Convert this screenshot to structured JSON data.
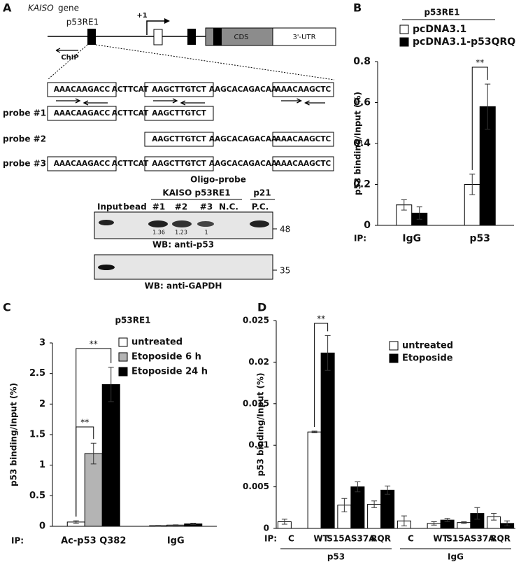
{
  "panel_a": {
    "label": "A",
    "gene_name": "KAISO",
    "gene_suffix": "gene",
    "element_label": "p53RE1",
    "tss_label": "+1",
    "cds_label": "CDS",
    "utr_label": "3'-UTR",
    "chip_label": "ChIP",
    "sequence": [
      "AAACAAGACC",
      "ACTTCAT",
      "AAGCTTGTCT",
      "AAGCACAGACAA",
      "AAACAAGCTC"
    ],
    "probes": [
      {
        "name": "probe #1",
        "segments": [
          "AAACAAGACC",
          "ACTTCAT",
          "AAGCTTGTCT"
        ]
      },
      {
        "name": "probe #2",
        "segments": [
          "AAGCTTGTCT",
          "AAGCACAGACAA",
          "AAACAAGCTC"
        ]
      },
      {
        "name": "probe #3",
        "segments": [
          "AAACAAGACC",
          "ACTTCAT",
          "AAGCTTGTCT",
          "AAGCACAGACAA",
          "AAACAAGCTC"
        ]
      }
    ],
    "blot": {
      "probe_title": "Oligo-probe",
      "group_kaiso": "KAISO p53RE1",
      "group_p21": "p21",
      "lanes": [
        "Input",
        "bead",
        "#1",
        "#2",
        "#3",
        "N.C.",
        "P.C."
      ],
      "quantities": [
        1.36,
        1.23,
        1
      ],
      "markers": [
        48,
        35
      ],
      "captions": [
        "WB: anti-p53",
        "WB: anti-GAPDH"
      ]
    }
  },
  "chart_data": [
    {
      "type": "bar",
      "panel_label": "B",
      "title": "p53RE1",
      "ylabel": "p53 binding/Input  (%)",
      "x_prefix": "IP:",
      "categories": [
        "IgG",
        "p53"
      ],
      "series": [
        {
          "name": "pcDNA3.1",
          "color": "#ffffff",
          "values": [
            0.1,
            0.2
          ],
          "errors": [
            0.025,
            0.05
          ]
        },
        {
          "name": "pcDNA3.1-p53QRQ",
          "color": "#000000",
          "values": [
            0.06,
            0.58
          ],
          "errors": [
            0.03,
            0.11
          ]
        }
      ],
      "ylim": [
        0,
        0.8
      ],
      "yticks": [
        0,
        0.2,
        0.4,
        0.6,
        0.8
      ],
      "annotations": [
        "**"
      ]
    },
    {
      "type": "bar",
      "panel_label": "C",
      "title": "p53RE1",
      "ylabel": "p53 binding/Input (%)",
      "x_prefix": "IP:",
      "categories": [
        "Ac-p53 Q382",
        "IgG"
      ],
      "series": [
        {
          "name": "untreated",
          "color": "#ffffff",
          "values": [
            0.07,
            0.01
          ],
          "errors": [
            0.02,
            0.005
          ]
        },
        {
          "name": "Etoposide 6 h",
          "color": "#b4b4b4",
          "values": [
            1.19,
            0.02
          ],
          "errors": [
            0.17,
            0.005
          ]
        },
        {
          "name": "Etoposide 24 h",
          "color": "#000000",
          "values": [
            2.32,
            0.04
          ],
          "errors": [
            0.28,
            0.01
          ]
        }
      ],
      "ylim": [
        0,
        3
      ],
      "yticks": [
        0,
        0.5,
        1,
        1.5,
        2,
        2.5,
        3
      ],
      "annotations": [
        "**",
        "**"
      ]
    },
    {
      "type": "bar",
      "panel_label": "D",
      "ylabel": "p53 binding/Input (%)",
      "x_prefix": "IP:",
      "categories": [
        "C",
        "WT",
        "S15AS37A",
        "RQR",
        "C",
        "WT",
        "S15AS37A",
        "RQR"
      ],
      "groups": [
        "p53",
        "IgG"
      ],
      "series": [
        {
          "name": "untreated",
          "color": "#ffffff",
          "values": [
            0.0008,
            0.0116,
            0.0028,
            0.0029,
            0.0009,
            0.0006,
            0.0007,
            0.0014
          ],
          "errors": [
            0.0003,
            0.0001,
            0.0008,
            0.0004,
            0.0006,
            0.0002,
            0.0001,
            0.0004
          ]
        },
        {
          "name": "Etoposide",
          "color": "#000000",
          "values": [
            null,
            0.0211,
            0.005,
            0.0046,
            null,
            0.001,
            0.0018,
            0.0006
          ],
          "errors": [
            null,
            0.0021,
            0.0006,
            0.0005,
            null,
            0.0002,
            0.0007,
            0.0003
          ]
        }
      ],
      "ylim": [
        0,
        0.025
      ],
      "yticks": [
        0,
        0.005,
        0.01,
        0.015,
        0.02,
        0.025
      ],
      "annotations": [
        "**"
      ]
    }
  ]
}
